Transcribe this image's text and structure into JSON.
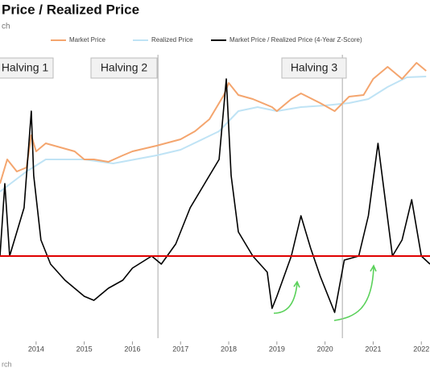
{
  "chart_data": {
    "type": "line",
    "title": "Price / Realized Price",
    "subtitle": "ch",
    "source": "rch",
    "xlim": [
      2013.25,
      2022.18
    ],
    "xticks": [
      2014,
      2015,
      2016,
      2017,
      2018,
      2019,
      2020,
      2021,
      2022
    ],
    "ylim": [
      0,
      370
    ],
    "reference_line": {
      "value": 110,
      "color": "#e00000"
    },
    "halvings": [
      {
        "label": "Halving 1",
        "x": 2012.9
      },
      {
        "label": "Halving 2",
        "x": 2016.53
      },
      {
        "label": "Halving 3",
        "x": 2020.36
      }
    ],
    "series": [
      {
        "name": "Market Price",
        "color": "#f4a56e",
        "x": [
          2013.25,
          2013.4,
          2013.6,
          2013.8,
          2013.9,
          2014.0,
          2014.2,
          2014.5,
          2014.8,
          2015.0,
          2015.2,
          2015.5,
          2015.8,
          2016.0,
          2016.5,
          2017.0,
          2017.3,
          2017.6,
          2017.9,
          2018.0,
          2018.2,
          2018.5,
          2018.9,
          2019.0,
          2019.3,
          2019.5,
          2019.9,
          2020.2,
          2020.5,
          2020.8,
          2021.0,
          2021.3,
          2021.6,
          2021.9,
          2022.1
        ],
        "values": [
          200,
          230,
          215,
          220,
          260,
          240,
          250,
          245,
          240,
          230,
          230,
          227,
          235,
          240,
          247,
          255,
          265,
          280,
          310,
          325,
          310,
          305,
          295,
          290,
          305,
          312,
          300,
          290,
          308,
          310,
          330,
          345,
          330,
          350,
          340
        ]
      },
      {
        "name": "Realized Price",
        "color": "#bfe3f5",
        "x": [
          2013.25,
          2013.8,
          2014.2,
          2015.0,
          2015.6,
          2016.5,
          2017.0,
          2017.8,
          2018.2,
          2018.6,
          2019.0,
          2019.5,
          2020.0,
          2020.5,
          2020.9,
          2021.3,
          2021.7,
          2022.1
        ],
        "values": [
          190,
          215,
          230,
          230,
          225,
          235,
          242,
          265,
          290,
          295,
          290,
          295,
          297,
          300,
          305,
          320,
          332,
          333
        ]
      },
      {
        "name": "Market Price / Realized Price (4-Year Z-Score)",
        "color": "#000000",
        "x": [
          2013.25,
          2013.35,
          2013.45,
          2013.6,
          2013.75,
          2013.85,
          2013.9,
          2013.95,
          2014.1,
          2014.3,
          2014.6,
          2015.0,
          2015.2,
          2015.5,
          2015.8,
          2016.0,
          2016.4,
          2016.6,
          2016.9,
          2017.2,
          2017.5,
          2017.8,
          2017.95,
          2018.05,
          2018.2,
          2018.5,
          2018.8,
          2018.9,
          2019.0,
          2019.3,
          2019.5,
          2019.7,
          2019.9,
          2020.2,
          2020.4,
          2020.7,
          2020.9,
          2021.1,
          2021.25,
          2021.4,
          2021.6,
          2021.8,
          2022.0,
          2022.18
        ],
        "values": [
          110,
          200,
          110,
          140,
          170,
          250,
          290,
          210,
          130,
          100,
          80,
          60,
          55,
          70,
          80,
          95,
          110,
          100,
          125,
          170,
          200,
          230,
          330,
          210,
          140,
          110,
          90,
          45,
          60,
          110,
          160,
          120,
          85,
          40,
          105,
          110,
          160,
          250,
          180,
          110,
          130,
          180,
          110,
          100
        ]
      }
    ]
  }
}
